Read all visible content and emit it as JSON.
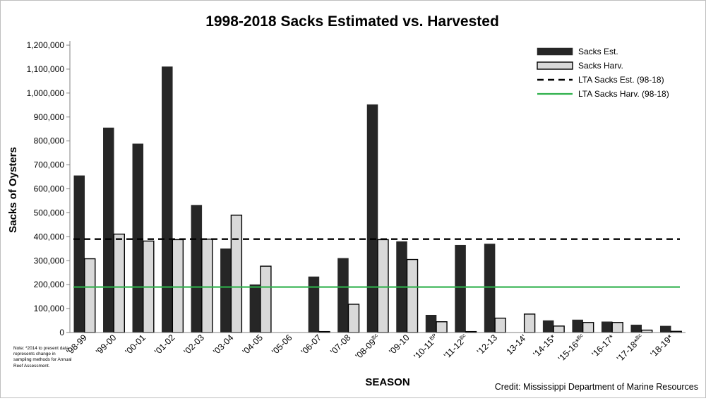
{
  "note": "Note: *2014 to present data represents change in sampling methods for Annual Reef Assessment.",
  "credit": "Credit: Mississippi Department of Marine Resources",
  "chart_data": {
    "type": "bar",
    "title": "1998-2018 Sacks Estimated vs. Harvested",
    "xlabel": "SEASON",
    "ylabel": "Sacks of Oysters",
    "ylim": [
      0,
      1200000
    ],
    "yticks": [
      0,
      100000,
      200000,
      300000,
      400000,
      500000,
      600000,
      700000,
      800000,
      900000,
      1000000,
      1100000,
      1200000
    ],
    "ytick_labels": [
      "0",
      "100,000",
      "200,000",
      "300,000",
      "400,000",
      "500,000",
      "600,000",
      "700,000",
      "800,000",
      "900,000",
      "1,000,000",
      "1,100,000",
      "1,200,000"
    ],
    "grid": false,
    "legend_position": "top-right",
    "categories": [
      {
        "label": "'98-99",
        "sup": ""
      },
      {
        "label": "'99-00",
        "sup": ""
      },
      {
        "label": "'00-01",
        "sup": ""
      },
      {
        "label": "'01-02",
        "sup": ""
      },
      {
        "label": "'02-03",
        "sup": ""
      },
      {
        "label": "'03-04",
        "sup": ""
      },
      {
        "label": "'04-05",
        "sup": ""
      },
      {
        "label": "'05-06",
        "sup": ""
      },
      {
        "label": "'06-07",
        "sup": ""
      },
      {
        "label": "'07-08",
        "sup": ""
      },
      {
        "label": "'08-09",
        "sup": "Bc"
      },
      {
        "label": "'09-10",
        "sup": ""
      },
      {
        "label": "'10-11",
        "sup": "BP"
      },
      {
        "label": "'11-12",
        "sup": "Bc"
      },
      {
        "label": "'12-13",
        "sup": ""
      },
      {
        "label": "13-14'",
        "sup": ""
      },
      {
        "label": "'14-15*",
        "sup": ""
      },
      {
        "label": "'15-16*",
        "sup": "Bc"
      },
      {
        "label": "'16-17*",
        "sup": ""
      },
      {
        "label": "'17-18*",
        "sup": "Bc"
      },
      {
        "label": "'18-19*",
        "sup": ""
      }
    ],
    "series": [
      {
        "name": "Sacks Est.",
        "color": "#262626",
        "values": [
          655000,
          855000,
          788000,
          1110000,
          532000,
          350000,
          200000,
          0,
          233000,
          310000,
          952000,
          380000,
          73000,
          365000,
          370000,
          0,
          50000,
          53000,
          45000,
          32000,
          27000
        ]
      },
      {
        "name": "Sacks Harv.",
        "color": "#d9d9d9",
        "values": [
          308000,
          411000,
          382000,
          388000,
          390000,
          490000,
          277000,
          0,
          4000,
          118000,
          388000,
          305000,
          45000,
          4000,
          60000,
          77000,
          27000,
          42000,
          42000,
          10000,
          5000
        ]
      }
    ],
    "reference_lines": [
      {
        "name": "LTA Sacks Est. (98-18)",
        "value": 390000,
        "style": "dashed",
        "color": "#000000"
      },
      {
        "name": "LTA Sacks Harv. (98-18)",
        "value": 190000,
        "style": "solid",
        "color": "#2eb04a"
      }
    ]
  }
}
